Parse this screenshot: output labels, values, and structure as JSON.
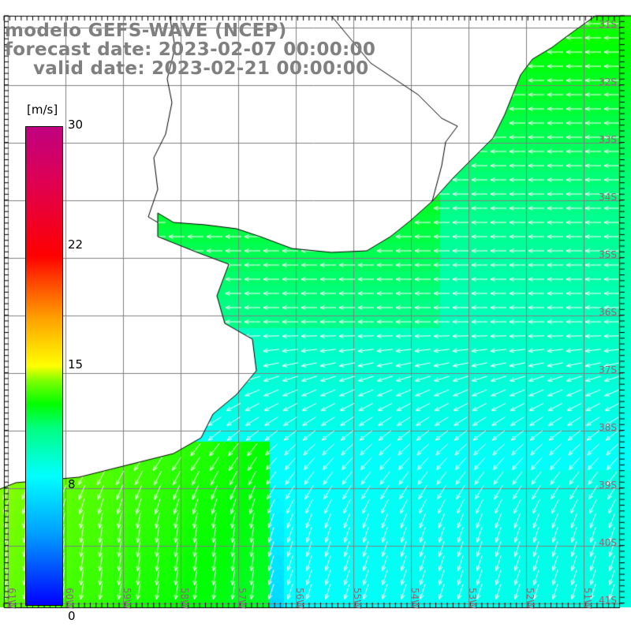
{
  "title": {
    "model": "modelo GEFS-WAVE (NCEP)",
    "forecast": "forecast date: 2023-02-07 00:00:00",
    "valid": "valid date: 2023-02-21 00:00:00"
  },
  "colorbar": {
    "unit": "[m/s]",
    "labels": [
      "30",
      "22",
      "15",
      "8",
      "0"
    ],
    "range": [
      0,
      30
    ]
  },
  "lat_labels": [
    "31S",
    "32S",
    "33S",
    "34S",
    "35S",
    "36S",
    "37S",
    "38S",
    "39S",
    "40S",
    "41S"
  ],
  "lon_labels": [
    "61W",
    "60W",
    "59W",
    "58W",
    "57W",
    "56W",
    "55W",
    "54W",
    "53W",
    "52W",
    "51W"
  ],
  "colors": {
    "land": "#ffffff",
    "grid": "#808080",
    "arrow": "#ffffff",
    "coast": "#000000"
  }
}
